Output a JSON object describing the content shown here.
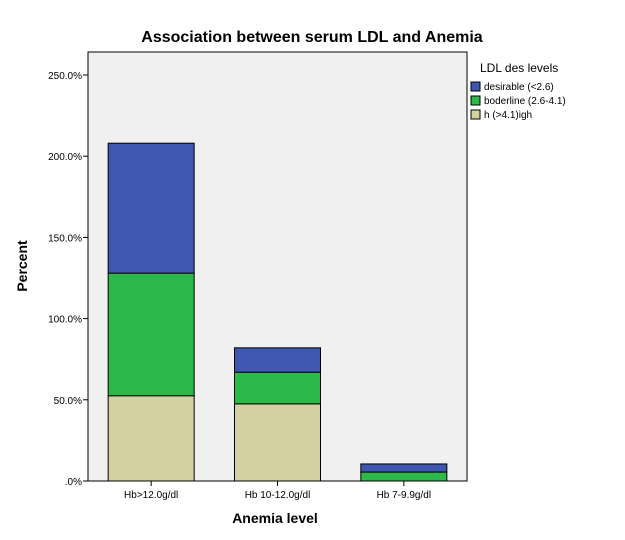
{
  "chart_data": {
    "type": "bar",
    "stacked": true,
    "title": "Association between serum LDL and Anemia",
    "xlabel": "Anemia level",
    "ylabel": "Percent",
    "categories": [
      "Hb>12.0g/dl",
      "Hb 10-12.0g/dl",
      "Hb 7-9.9g/dl"
    ],
    "series": [
      {
        "name": "h (>4.1)igh",
        "color": "#D4D0A0",
        "values": [
          52.5,
          47.5,
          0.0
        ]
      },
      {
        "name": "boderline (2.6-4.1)",
        "color": "#2DB84A",
        "values": [
          75.5,
          19.5,
          5.5
        ]
      },
      {
        "name": "desirable (<2.6)",
        "color": "#3F57B0",
        "values": [
          80.0,
          15.0,
          5.0
        ]
      }
    ],
    "ylim": [
      0,
      250
    ],
    "yticks": [
      0,
      50,
      100,
      150,
      200,
      250
    ],
    "ytick_labels": [
      ".0%",
      "50.0%",
      "100.0%",
      "150.0%",
      "200.0%",
      "250.0%"
    ],
    "legend": {
      "title": "LDL des levels",
      "placement": "right",
      "entries": [
        {
          "label": "desirable (<2.6)",
          "color": "#3F57B0"
        },
        {
          "label": "boderline (2.6-4.1)",
          "color": "#2DB84A"
        },
        {
          "label": "h (>4.1)igh",
          "color": "#D4D0A0"
        }
      ]
    },
    "grid": false,
    "plot_background": "#F0F0F0"
  }
}
